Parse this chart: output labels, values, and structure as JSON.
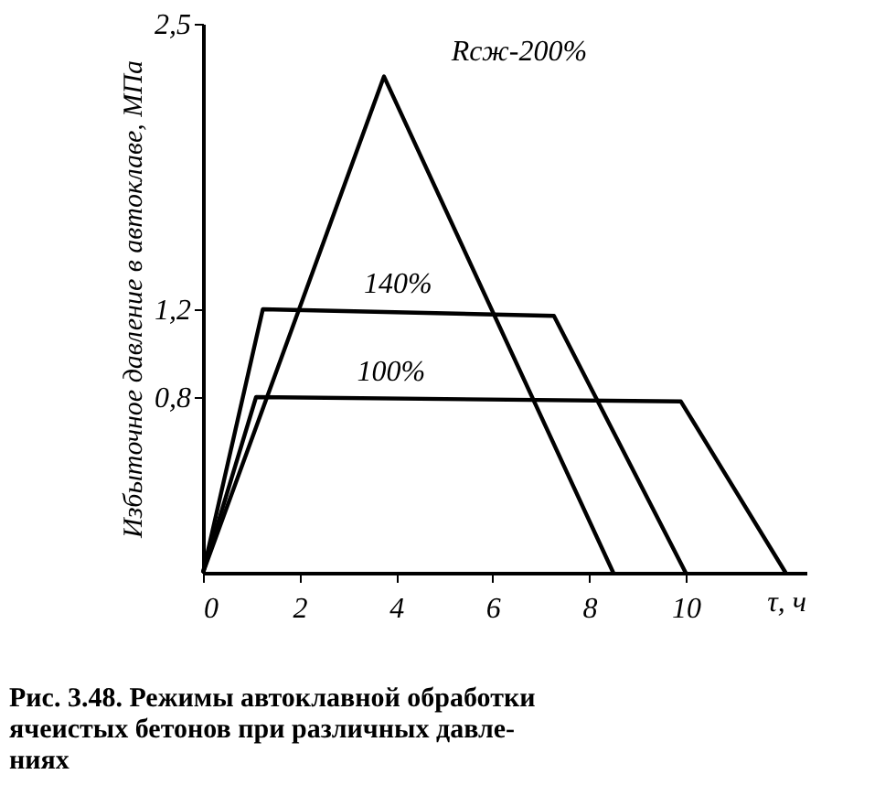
{
  "chart_data": {
    "type": "line",
    "ylabel": "Избыточное давление в автоклаве, МПа",
    "xlabel": "τ, ч",
    "annotations": [
      "Рис. 3.48. Режимы автоклавной обработки\nячеистых бетонов при различных давле-\nниях"
    ],
    "series": [
      {
        "name": "Rсж-200%",
        "color": "#000000",
        "x": [
          0,
          3.75,
          8.5
        ],
        "values": [
          0,
          2.26,
          0
        ]
      },
      {
        "name": "140%",
        "color": "#000000",
        "x": [
          0,
          1.24,
          7.27,
          10.0
        ],
        "values": [
          0,
          1.2,
          1.17,
          0
        ]
      },
      {
        "name": "100%",
        "color": "#000000",
        "x": [
          0,
          1.1,
          9.9,
          12.07
        ],
        "values": [
          0,
          0.8,
          0.78,
          0
        ]
      }
    ],
    "xlim": [
      0,
      12.5
    ],
    "ylim": [
      0,
      2.5
    ],
    "xticks": [
      0,
      2,
      4,
      6,
      8,
      10
    ],
    "yticks": [
      {
        "value": 0.8,
        "label": "0,8"
      },
      {
        "value": 1.2,
        "label": "1,2"
      },
      {
        "value": 2.5,
        "label": "2,5"
      }
    ],
    "grid": false,
    "legend": false,
    "marker": "none",
    "line_style": "solid"
  }
}
